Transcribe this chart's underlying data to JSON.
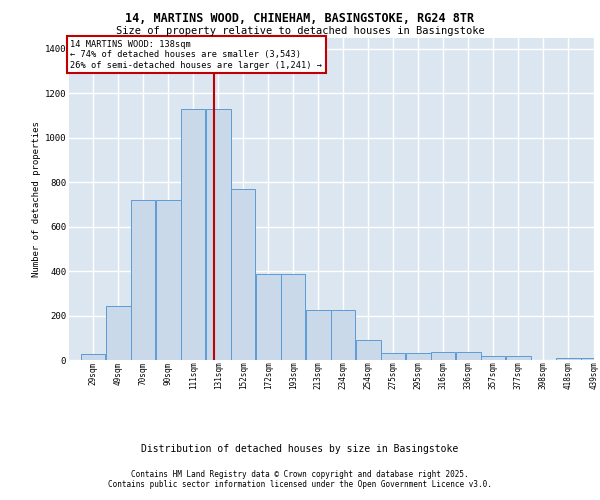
{
  "title1": "14, MARTINS WOOD, CHINEHAM, BASINGSTOKE, RG24 8TR",
  "title2": "Size of property relative to detached houses in Basingstoke",
  "xlabel": "Distribution of detached houses by size in Basingstoke",
  "ylabel": "Number of detached properties",
  "bar_edges": [
    29,
    49,
    70,
    90,
    111,
    131,
    152,
    172,
    193,
    213,
    234,
    254,
    275,
    295,
    316,
    336,
    357,
    377,
    398,
    418,
    439
  ],
  "bar_heights": [
    25,
    245,
    720,
    720,
    1130,
    1130,
    770,
    385,
    385,
    225,
    225,
    90,
    30,
    30,
    35,
    35,
    20,
    20,
    0,
    10,
    10
  ],
  "bar_color": "#c9d9ea",
  "bar_edge_color": "#5b9bd5",
  "vline_x": 138,
  "vline_color": "#c00000",
  "annotation_title": "14 MARTINS WOOD: 138sqm",
  "annotation_line2": "← 74% of detached houses are smaller (3,543)",
  "annotation_line3": "26% of semi-detached houses are larger (1,241) →",
  "annotation_box_color": "#c00000",
  "annotation_bg": "#ffffff",
  "background_color": "#dce6f0",
  "grid_color": "#ffffff",
  "ylim": [
    0,
    1450
  ],
  "yticks": [
    0,
    200,
    400,
    600,
    800,
    1000,
    1200,
    1400
  ],
  "footnote1": "Contains HM Land Registry data © Crown copyright and database right 2025.",
  "footnote2": "Contains public sector information licensed under the Open Government Licence v3.0."
}
